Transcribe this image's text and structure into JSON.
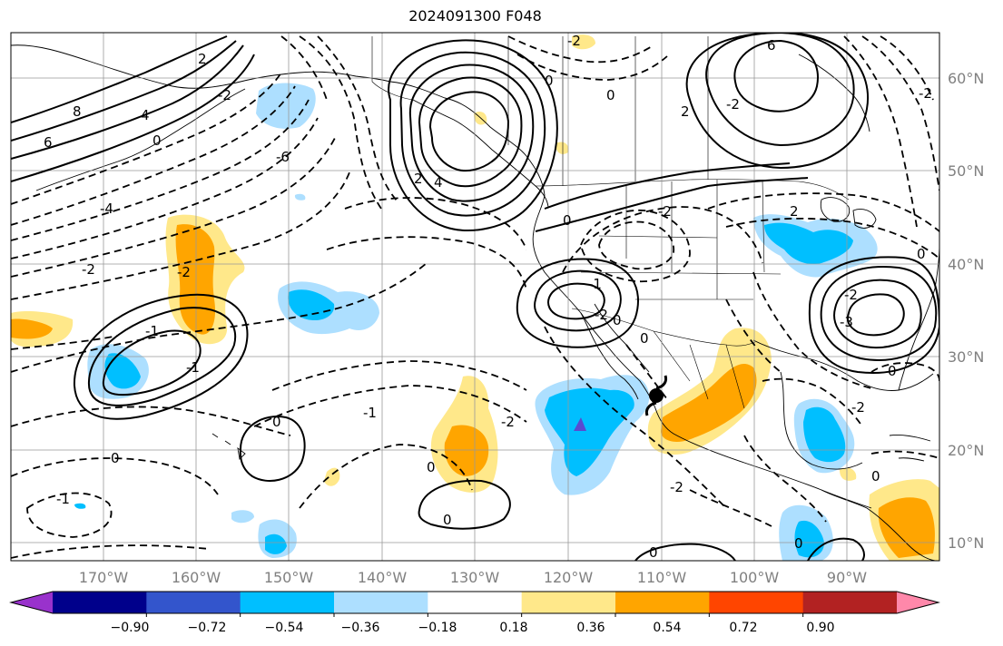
{
  "title": "2024091300 F048",
  "latitude_labels": [
    "60°N",
    "50°N",
    "40°N",
    "30°N",
    "20°N",
    "10°N"
  ],
  "longitude_labels": [
    "170°W",
    "160°W",
    "150°W",
    "140°W",
    "130°W",
    "120°W",
    "110°W",
    "100°W",
    "90°W"
  ],
  "colorbar": {
    "tick_labels": [
      "−0.90",
      "−0.72",
      "−0.54",
      "−0.36",
      "−0.18",
      "0.18",
      "0.36",
      "0.54",
      "0.72",
      "0.90"
    ],
    "colors": [
      "#9932CC",
      "#00008B",
      "#3355CC",
      "#00BFFF",
      "#ADDFFF",
      "#FFFFFF",
      "#FFE88A",
      "#FFA500",
      "#FF4500",
      "#B22222",
      "#FF88AA"
    ]
  },
  "shading_colors": {
    "light_blue": "#ADDFFF",
    "blue": "#00BFFF",
    "light_yellow": "#FFE88A",
    "orange": "#FFA500"
  },
  "contour_labels": [
    "8",
    "6",
    "4",
    "2",
    "0",
    "-2",
    "-4",
    "-6",
    "2",
    "4",
    "6",
    "-2",
    "0",
    "2",
    "0",
    "-2",
    "-2",
    "-1",
    "0",
    "-1",
    "0",
    "0",
    "-1",
    "-2",
    "-1",
    "0",
    "-2",
    "0",
    "-2",
    "-2",
    "0",
    "-2",
    "0",
    "-1",
    "-2",
    "-3",
    "-2",
    "0",
    "2",
    "0",
    "0",
    "-2",
    "0",
    "0"
  ],
  "markers": [
    {
      "name": "tropical-cyclone-symbol",
      "lon": -110.5,
      "lat": 24.5
    },
    {
      "name": "low-center-triangle",
      "lon": -119.5,
      "lat": 22.5
    }
  ]
}
